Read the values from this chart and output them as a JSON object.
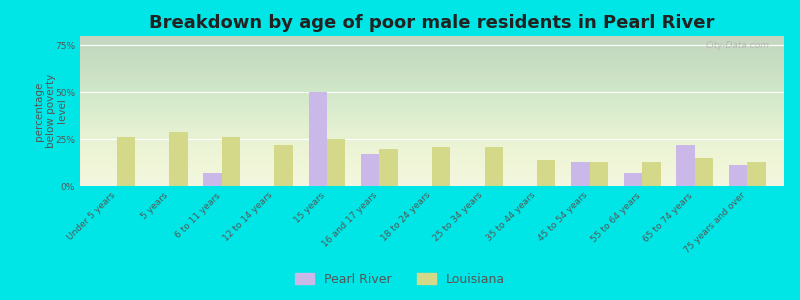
{
  "title": "Breakdown by age of poor male residents in Pearl River",
  "ylabel": "percentage\nbelow poverty\nlevel",
  "categories": [
    "Under 5 years",
    "5 years",
    "6 to 11 years",
    "12 to 14 years",
    "15 years",
    "16 and 17 years",
    "18 to 24 years",
    "25 to 34 years",
    "35 to 44 years",
    "45 to 54 years",
    "55 to 64 years",
    "65 to 74 years",
    "75 years and over"
  ],
  "pearl_river": [
    0,
    0,
    7,
    0,
    50,
    17,
    0,
    0,
    0,
    13,
    7,
    22,
    11
  ],
  "louisiana": [
    26,
    29,
    26,
    22,
    25,
    20,
    21,
    21,
    14,
    13,
    13,
    15,
    13
  ],
  "bar_color_pearl": "#c9b8e8",
  "bar_color_louisiana": "#d4d98a",
  "bg_outer": "#00e5e5",
  "plot_bg": "#f0f5e0",
  "ylim": [
    0,
    80
  ],
  "yticks": [
    0,
    25,
    50,
    75
  ],
  "ytick_labels": [
    "0%",
    "25%",
    "50%",
    "75%"
  ],
  "title_fontsize": 13,
  "ylabel_fontsize": 7.5,
  "tick_fontsize": 6.5,
  "legend_fontsize": 9,
  "bar_width": 0.35,
  "watermark": "City-Data.com"
}
